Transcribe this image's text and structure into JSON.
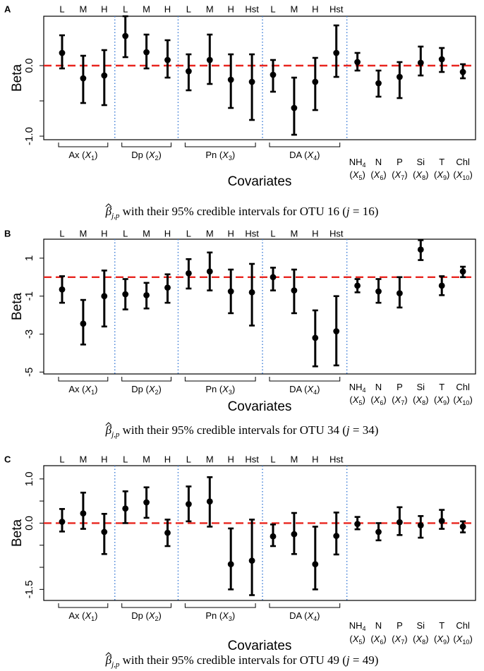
{
  "figure": {
    "columns": [
      {
        "group": 0,
        "label": "L"
      },
      {
        "group": 0,
        "label": "M"
      },
      {
        "group": 0,
        "label": "H"
      },
      {
        "group": 1,
        "label": "L"
      },
      {
        "group": 1,
        "label": "M"
      },
      {
        "group": 1,
        "label": "H"
      },
      {
        "group": 2,
        "label": "L"
      },
      {
        "group": 2,
        "label": "M"
      },
      {
        "group": 2,
        "label": "H"
      },
      {
        "group": 2,
        "label": "Hst"
      },
      {
        "group": 3,
        "label": "L"
      },
      {
        "group": 3,
        "label": "M"
      },
      {
        "group": 3,
        "label": "H"
      },
      {
        "group": 3,
        "label": "Hst"
      },
      {
        "group": 4,
        "label": ""
      },
      {
        "group": 4,
        "label": ""
      },
      {
        "group": 4,
        "label": ""
      },
      {
        "group": 4,
        "label": ""
      },
      {
        "group": 4,
        "label": ""
      },
      {
        "group": 4,
        "label": ""
      }
    ],
    "groups": [
      {
        "name": "Ax",
        "sym": "X",
        "sub": "1"
      },
      {
        "name": "Dp",
        "sym": "X",
        "sub": "2"
      },
      {
        "name": "Pn",
        "sym": "X",
        "sub": "3"
      },
      {
        "name": "DA",
        "sym": "X",
        "sub": "4"
      }
    ],
    "covariates": [
      {
        "top": "NH",
        "top_sub": "4",
        "sym": "X",
        "sub": "5"
      },
      {
        "top": "N",
        "top_sub": "",
        "sym": "X",
        "sub": "6"
      },
      {
        "top": "P",
        "top_sub": "",
        "sym": "X",
        "sub": "7"
      },
      {
        "top": "Si",
        "top_sub": "",
        "sym": "X",
        "sub": "8"
      },
      {
        "top": "T",
        "top_sub": "",
        "sym": "X",
        "sub": "9"
      },
      {
        "top": "Chl",
        "top_sub": "",
        "sym": "X",
        "sub": "10"
      }
    ],
    "colors": {
      "ref_line": "#e8251f",
      "separator": "#3a7bd5",
      "points": "#000000"
    },
    "caption_prefix": "with their 95% credible intervals for OTU"
  },
  "chart_data": [
    {
      "tag": "A",
      "type": "errorbar",
      "xlabel": "Covariates",
      "ylabel": "Beta",
      "ylim": [
        -1.05,
        0.7
      ],
      "yticks": [
        0.0,
        -0.5,
        -1.0
      ],
      "ytick_labels": [
        "0.0",
        "",
        "-1.0"
      ],
      "ref_value": 0,
      "otu": "16",
      "j": "16",
      "estimate": [
        0.18,
        -0.18,
        -0.14,
        0.42,
        0.19,
        0.08,
        -0.08,
        0.08,
        -0.2,
        -0.23,
        -0.13,
        -0.6,
        -0.23,
        0.18,
        0.05,
        -0.25,
        -0.16,
        0.04,
        0.09,
        -0.09
      ],
      "lower": [
        -0.04,
        -0.53,
        -0.56,
        0.12,
        -0.04,
        -0.17,
        -0.35,
        -0.26,
        -0.6,
        -0.77,
        -0.37,
        -0.98,
        -0.63,
        -0.16,
        -0.07,
        -0.44,
        -0.46,
        -0.14,
        -0.09,
        -0.18
      ],
      "upper": [
        0.43,
        0.14,
        0.22,
        0.7,
        0.44,
        0.36,
        0.16,
        0.44,
        0.16,
        0.16,
        0.08,
        -0.17,
        0.11,
        0.57,
        0.18,
        -0.07,
        0.05,
        0.27,
        0.25,
        0.02
      ]
    },
    {
      "tag": "B",
      "type": "errorbar",
      "xlabel": "Covariates",
      "ylabel": "Beta",
      "ylim": [
        -5.1,
        2.0
      ],
      "yticks": [
        1,
        -1,
        -3,
        -5
      ],
      "ytick_labels": [
        "1",
        "-1",
        "-3",
        "-5"
      ],
      "ref_value": 0,
      "otu": "34",
      "j": "34",
      "estimate": [
        -0.65,
        -2.45,
        -1.0,
        -0.9,
        -0.95,
        -0.55,
        0.2,
        0.3,
        -0.75,
        -0.8,
        0.0,
        -0.7,
        -3.2,
        -2.85,
        -0.45,
        -0.75,
        -0.85,
        1.45,
        -0.45,
        0.3
      ],
      "lower": [
        -1.35,
        -3.55,
        -2.6,
        -1.7,
        -1.65,
        -1.35,
        -0.6,
        -0.7,
        -1.9,
        -2.55,
        -0.7,
        -1.9,
        -4.7,
        -4.65,
        -0.8,
        -1.35,
        -1.6,
        0.9,
        -0.95,
        0.0
      ],
      "upper": [
        0.05,
        -1.2,
        0.35,
        -0.1,
        -0.3,
        0.15,
        0.95,
        1.3,
        0.4,
        0.7,
        0.5,
        0.4,
        -1.75,
        -1.0,
        -0.1,
        -0.1,
        0.0,
        1.95,
        0.05,
        0.55
      ]
    },
    {
      "tag": "C",
      "type": "errorbar",
      "xlabel": "Covariates",
      "ylabel": "Beta",
      "ylim": [
        -1.75,
        1.3
      ],
      "yticks": [
        1.0,
        0.5,
        0.0,
        -0.5,
        -1.0,
        -1.5
      ],
      "ytick_labels": [
        "1.0",
        "",
        "0.0",
        "",
        "",
        "-1.5"
      ],
      "ref_value": 0,
      "otu": "49",
      "j": "49",
      "estimate": [
        0.03,
        0.22,
        -0.2,
        0.33,
        0.47,
        -0.22,
        0.43,
        0.49,
        -0.93,
        -0.85,
        -0.3,
        -0.25,
        -0.93,
        -0.29,
        -0.02,
        -0.2,
        0.02,
        -0.05,
        0.05,
        -0.08
      ],
      "lower": [
        -0.19,
        -0.13,
        -0.7,
        0.0,
        0.12,
        -0.52,
        0.04,
        -0.08,
        -1.5,
        -1.63,
        -0.52,
        -0.7,
        -1.5,
        -0.71,
        -0.14,
        -0.39,
        -0.27,
        -0.33,
        -0.13,
        -0.21
      ],
      "upper": [
        0.32,
        0.69,
        0.21,
        0.72,
        0.81,
        0.08,
        0.83,
        1.04,
        -0.12,
        0.08,
        -0.03,
        0.23,
        -0.08,
        0.24,
        0.14,
        0.0,
        0.36,
        0.16,
        0.3,
        0.04
      ]
    }
  ]
}
